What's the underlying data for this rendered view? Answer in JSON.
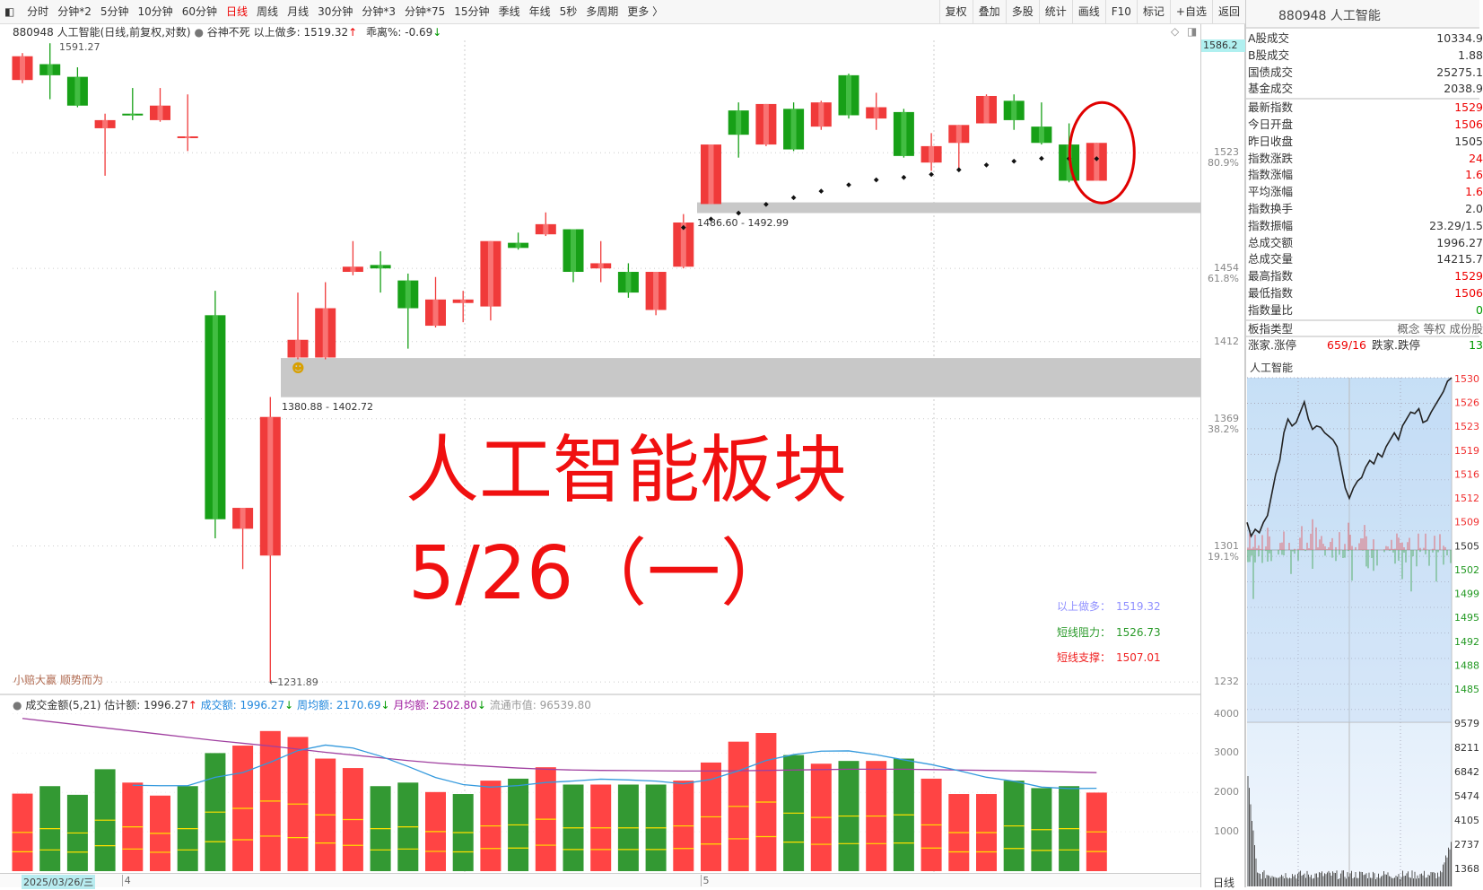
{
  "toolbar": {
    "items": [
      "分时",
      "分钟*2",
      "5分钟",
      "10分钟",
      "60分钟",
      "日线",
      "周线",
      "月线",
      "30分钟",
      "分钟*3",
      "分钟*75",
      "15分钟",
      "季线",
      "年线",
      "5秒",
      "多周期",
      "更多 〉"
    ],
    "active": "日线",
    "right_buttons": [
      "复权",
      "叠加",
      "多股",
      "统计",
      "画线",
      "F10",
      "标记",
      "+自选",
      "返回"
    ]
  },
  "info": {
    "title": "880948 人工智能(日线,前复权,对数)",
    "indicator": "谷神不死",
    "long_label": "以上做多: 1519.32",
    "long_arrow": "↑",
    "bias_label": "乖离%: -0.69",
    "bias_arrow": "↓"
  },
  "chart": {
    "high_marker": "1591.27",
    "low_marker": "←1231.89",
    "top_price_badge": "1586.2",
    "zone1_label": "1380.88 - 1402.72",
    "zone1": [
      1380.88,
      1402.72
    ],
    "zone2_label": "1486.60 - 1492.99",
    "zone2": [
      1486.6,
      1492.99
    ],
    "overlay_title": "人工智能板块",
    "overlay_date": "5/26（一）",
    "motto": "小赔大赢 顺势而为",
    "signals": [
      {
        "label": "以上做多：",
        "value": "1519.32",
        "color": "#9090ff"
      },
      {
        "label": "短线阻力：",
        "value": "1526.73",
        "color": "#2a9a2a"
      },
      {
        "label": "短线支撑：",
        "value": "1507.01",
        "color": "#f02020"
      }
    ],
    "price_axis": [
      {
        "v": 1523,
        "pct": "80.9%"
      },
      {
        "v": 1454,
        "pct": "61.8%"
      },
      {
        "v": 1412,
        "pct": ""
      },
      {
        "v": 1369,
        "pct": "38.2%"
      },
      {
        "v": 1301,
        "pct": "19.1%"
      },
      {
        "v": 1232,
        "pct": ""
      }
    ],
    "volume_axis": [
      4000,
      3000,
      2000,
      1000
    ],
    "period_label": "日线",
    "colors": {
      "up": "#f03a3a",
      "down": "#17a017",
      "vol_up": "#ff4444",
      "vol_down": "#339933",
      "ma5": "#3399dd",
      "ma21": "#a040a0",
      "zone": "#c8c8c8",
      "circle": "#e00000"
    }
  },
  "volume_info": {
    "title": "成交金额(5,21)",
    "estimate": "估计额: 1996.27",
    "est_arrow": "↑",
    "amount": "成交额: 1996.27",
    "amount_arrow": "↓",
    "weekly": "周均额: 2170.69",
    "weekly_arrow": "↓",
    "monthly": "月均额: 2502.80",
    "monthly_arrow": "↓",
    "float_cap": "流通市值: 96539.80"
  },
  "datebar": {
    "cursor_date": "2025/03/26/三",
    "month_marks": [
      {
        "label": "4",
        "index": 4
      },
      {
        "label": "5",
        "index": 25
      }
    ]
  },
  "chart_data": {
    "type": "candlestick",
    "scale": "log",
    "ylim": [
      1231.89,
      1591.27
    ],
    "columns": [
      "date",
      "open",
      "high",
      "low",
      "close"
    ],
    "candles": [
      [
        "2025-03-26",
        1568,
        1585,
        1566,
        1583
      ],
      [
        "2025-03-27",
        1578,
        1591.27,
        1556,
        1571
      ],
      [
        "2025-03-28",
        1570,
        1576,
        1551,
        1552
      ],
      [
        "2025-03-31",
        1538,
        1547,
        1509,
        1543
      ],
      [
        "2025-04-01",
        1547,
        1563,
        1543,
        1546
      ],
      [
        "2025-04-02",
        1543,
        1563,
        1542,
        1552
      ],
      [
        "2025-04-03",
        1532,
        1559,
        1524,
        1533
      ],
      [
        "2025-04-07",
        1427,
        1441,
        1305,
        1315
      ],
      [
        "2025-04-08",
        1310,
        1321,
        1289,
        1321
      ],
      [
        "2025-04-09",
        1296,
        1381,
        1231.89,
        1370
      ],
      [
        "2025-04-10",
        1403,
        1440,
        1402,
        1413
      ],
      [
        "2025-04-11",
        1403,
        1446,
        1402,
        1431
      ],
      [
        "2025-04-14",
        1452,
        1470,
        1450,
        1455
      ],
      [
        "2025-04-15",
        1456,
        1464,
        1440,
        1454
      ],
      [
        "2025-04-16",
        1447,
        1451,
        1408,
        1431
      ],
      [
        "2025-04-17",
        1421,
        1449,
        1420,
        1436
      ],
      [
        "2025-04-18",
        1434,
        1441,
        1423,
        1436
      ],
      [
        "2025-04-21",
        1432,
        1470,
        1424,
        1470
      ],
      [
        "2025-04-22",
        1469,
        1475,
        1465,
        1466
      ],
      [
        "2025-04-23",
        1474,
        1487,
        1473,
        1480
      ],
      [
        "2025-04-24",
        1477,
        1477,
        1446,
        1452
      ],
      [
        "2025-04-25",
        1454,
        1470,
        1446,
        1457
      ],
      [
        "2025-04-28",
        1452,
        1457,
        1437,
        1440
      ],
      [
        "2025-04-29",
        1430,
        1452,
        1427,
        1452
      ],
      [
        "2025-04-30",
        1455,
        1486,
        1454,
        1481
      ],
      [
        "2025-05-06",
        1492,
        1528,
        1492,
        1528
      ],
      [
        "2025-05-07",
        1549,
        1554,
        1520,
        1534
      ],
      [
        "2025-05-08",
        1528,
        1553,
        1527,
        1553
      ],
      [
        "2025-05-09",
        1550,
        1554,
        1524,
        1525
      ],
      [
        "2025-05-12",
        1539,
        1555,
        1537,
        1554
      ],
      [
        "2025-05-13",
        1571,
        1572,
        1544,
        1546
      ],
      [
        "2025-05-14",
        1544,
        1560,
        1537,
        1551
      ],
      [
        "2025-05-15",
        1548,
        1550,
        1520,
        1521
      ],
      [
        "2025-05-16",
        1517,
        1535,
        1512,
        1527
      ],
      [
        "2025-05-19",
        1529,
        1540,
        1512,
        1540
      ],
      [
        "2025-05-20",
        1541,
        1559,
        1541,
        1558
      ],
      [
        "2025-05-21",
        1555,
        1559,
        1537,
        1543
      ],
      [
        "2025-05-22",
        1539,
        1554,
        1528,
        1529
      ],
      [
        "2025-05-23",
        1528,
        1541,
        1505,
        1506
      ],
      [
        "2025-05-26",
        1506,
        1529,
        1506,
        1529
      ]
    ],
    "stop_dots_start_index": 24,
    "stop_dots": [
      1478,
      1483,
      1486.6,
      1491.8,
      1495.8,
      1499.7,
      1503.5,
      1506.5,
      1508,
      1509.8,
      1512.6,
      1515.5,
      1517.8,
      1519.5,
      1519.4,
      1519.32
    ],
    "volume": [
      1970,
      2160,
      1940,
      2590,
      2250,
      1920,
      2160,
      3000,
      3190,
      3560,
      3410,
      2860,
      2620,
      2160,
      2250,
      2010,
      1960,
      2300,
      2350,
      2640,
      2200,
      2200,
      2200,
      2200,
      2300,
      2760,
      3290,
      3510,
      2950,
      2730,
      2800,
      2800,
      2860,
      2350,
      1960,
      1960,
      2300,
      2110,
      2160,
      1996.27
    ],
    "volume_up": [
      1,
      0,
      0,
      0,
      1,
      1,
      0,
      0,
      1,
      1,
      1,
      1,
      1,
      0,
      0,
      1,
      0,
      1,
      0,
      1,
      0,
      1,
      0,
      0,
      1,
      1,
      1,
      1,
      0,
      1,
      0,
      1,
      0,
      1,
      1,
      1,
      0,
      0,
      0,
      1
    ],
    "ma21": [
      3880,
      3800,
      3720,
      3640,
      3560,
      3480,
      3400,
      3320,
      3250,
      3180,
      3100,
      3020,
      2950,
      2880,
      2810,
      2750,
      2700,
      2660,
      2620,
      2590,
      2570,
      2560,
      2555,
      2550,
      2545,
      2545,
      2550,
      2560,
      2570,
      2580,
      2590,
      2590,
      2590,
      2580,
      2570,
      2560,
      2550,
      2540,
      2520,
      2502.8
    ],
    "ylim_volume": [
      0,
      4300
    ]
  },
  "panel": {
    "title": "880948 人工智能",
    "group1": [
      {
        "k": "A股成交",
        "v": "10334.9"
      },
      {
        "k": "B股成交",
        "v": "1.88"
      },
      {
        "k": "国债成交",
        "v": "25275.1"
      },
      {
        "k": "基金成交",
        "v": "2038.9"
      }
    ],
    "group2": [
      {
        "k": "最新指数",
        "v": "1529",
        "c": "up"
      },
      {
        "k": "今日开盘",
        "v": "1506",
        "c": "up"
      },
      {
        "k": "昨日收盘",
        "v": "1505",
        "c": ""
      },
      {
        "k": "指数涨跌",
        "v": "24",
        "c": "up"
      },
      {
        "k": "指数涨幅",
        "v": "1.6",
        "c": "up"
      },
      {
        "k": "平均涨幅",
        "v": "1.6",
        "c": "up"
      },
      {
        "k": "指数换手",
        "v": "2.0",
        "c": ""
      },
      {
        "k": "指数振幅",
        "v": "23.29/1.5",
        "c": ""
      },
      {
        "k": "总成交额",
        "v": "1996.27",
        "c": ""
      },
      {
        "k": "总成交量",
        "v": "14215.7",
        "c": ""
      },
      {
        "k": "最高指数",
        "v": "1529",
        "c": "up"
      },
      {
        "k": "最低指数",
        "v": "1506",
        "c": "up"
      },
      {
        "k": "指数量比",
        "v": "0",
        "c": "down"
      }
    ],
    "type_label": "板指类型",
    "type_value": "概念 等权 成份股",
    "adv_label": "涨家.涨停",
    "adv_value": "659/16",
    "dec_label": "跌家.跌停",
    "dec_value": "13",
    "intraday": {
      "label": "人工智能",
      "prev_close": 1505,
      "price_axis": [
        "1530",
        "1526",
        "1523",
        "1519",
        "1516",
        "1512",
        "1509",
        "1505",
        "1502",
        "1499",
        "1495",
        "1492",
        "1488",
        "1485"
      ],
      "volume_axis": [
        "9579",
        "8211",
        "6842",
        "5474",
        "4105",
        "2737",
        "1368"
      ],
      "prices": [
        1509,
        1507,
        1508,
        1507.5,
        1509,
        1510,
        1513,
        1516,
        1518,
        1522,
        1524,
        1523,
        1523.5,
        1525,
        1526.5,
        1524,
        1522.5,
        1523,
        1522.8,
        1522,
        1521.5,
        1521,
        1520,
        1517,
        1514,
        1512.5,
        1514,
        1515,
        1515.5,
        1517,
        1518,
        1517.5,
        1519,
        1518.5,
        1520,
        1521,
        1522,
        1521,
        1523,
        1524,
        1525,
        1524.8,
        1525.5,
        1523.5,
        1523.8,
        1525,
        1526,
        1527,
        1528,
        1529.5,
        1530
      ]
    }
  }
}
